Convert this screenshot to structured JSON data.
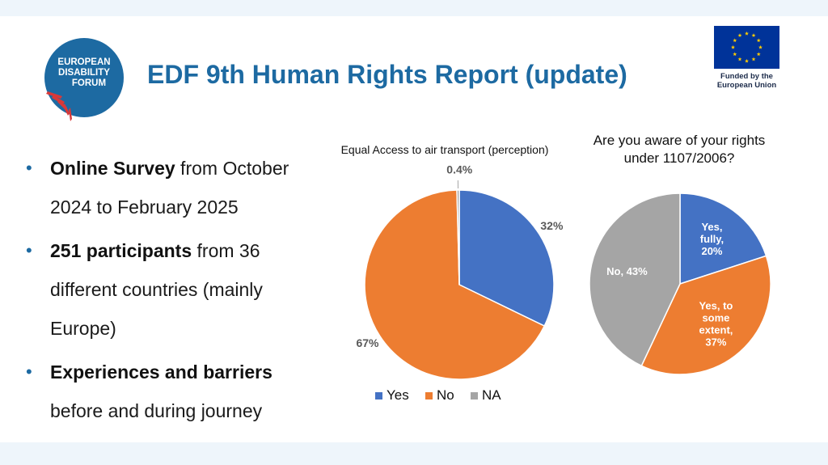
{
  "slide": {
    "title": "EDF 9th Human Rights Report (update)",
    "logo": {
      "lines": [
        "EUROPEAN",
        "DISABILITY",
        "FORUM"
      ],
      "color": "#1d6aa2",
      "stripe_color": "#d93838"
    },
    "eu": {
      "line1": "Funded by the",
      "line2": "European Union",
      "flag_color": "#003399",
      "star_color": "#ffcc00"
    }
  },
  "bullets": [
    {
      "bold": "Online Survey",
      "line1_rest": " from October",
      "line2": "2024 to February 2025",
      "line3": ""
    },
    {
      "bold": "251 participants",
      "line1_rest": " from 36",
      "line2": "different countries (mainly",
      "line3": "Europe)"
    },
    {
      "bold": "Experiences and barriers",
      "line1_rest": "",
      "line2": "before and during journey",
      "line3": ""
    }
  ],
  "chart_data": [
    {
      "type": "pie",
      "title": "Equal Access to air transport (perception)",
      "slices": [
        {
          "label": "Yes",
          "value": 32,
          "display": "32%",
          "color": "#4472c4"
        },
        {
          "label": "No",
          "value": 67,
          "display": "67%",
          "color": "#ed7d31"
        },
        {
          "label": "NA",
          "value": 0.4,
          "display": "0.4%",
          "color": "#a5a5a5"
        }
      ],
      "legend": {
        "placement": "bottom",
        "items": [
          "Yes",
          "No",
          "NA"
        ]
      }
    },
    {
      "type": "pie",
      "title": "Are you aware of your rights under 1107/2006?",
      "title_lines": [
        "Are you aware of your rights",
        "under 1107/2006?"
      ],
      "slices": [
        {
          "label": "Yes, fully",
          "value": 20,
          "display_lines": [
            "Yes,",
            "fully,",
            "20%"
          ],
          "color": "#4472c4"
        },
        {
          "label": "Yes, to some extent",
          "value": 37,
          "display_lines": [
            "Yes, to",
            "some",
            "extent,",
            "37%"
          ],
          "color": "#ed7d31"
        },
        {
          "label": "No",
          "value": 43,
          "display_lines": [
            "No, 43%"
          ],
          "color": "#a5a5a5"
        }
      ]
    }
  ]
}
